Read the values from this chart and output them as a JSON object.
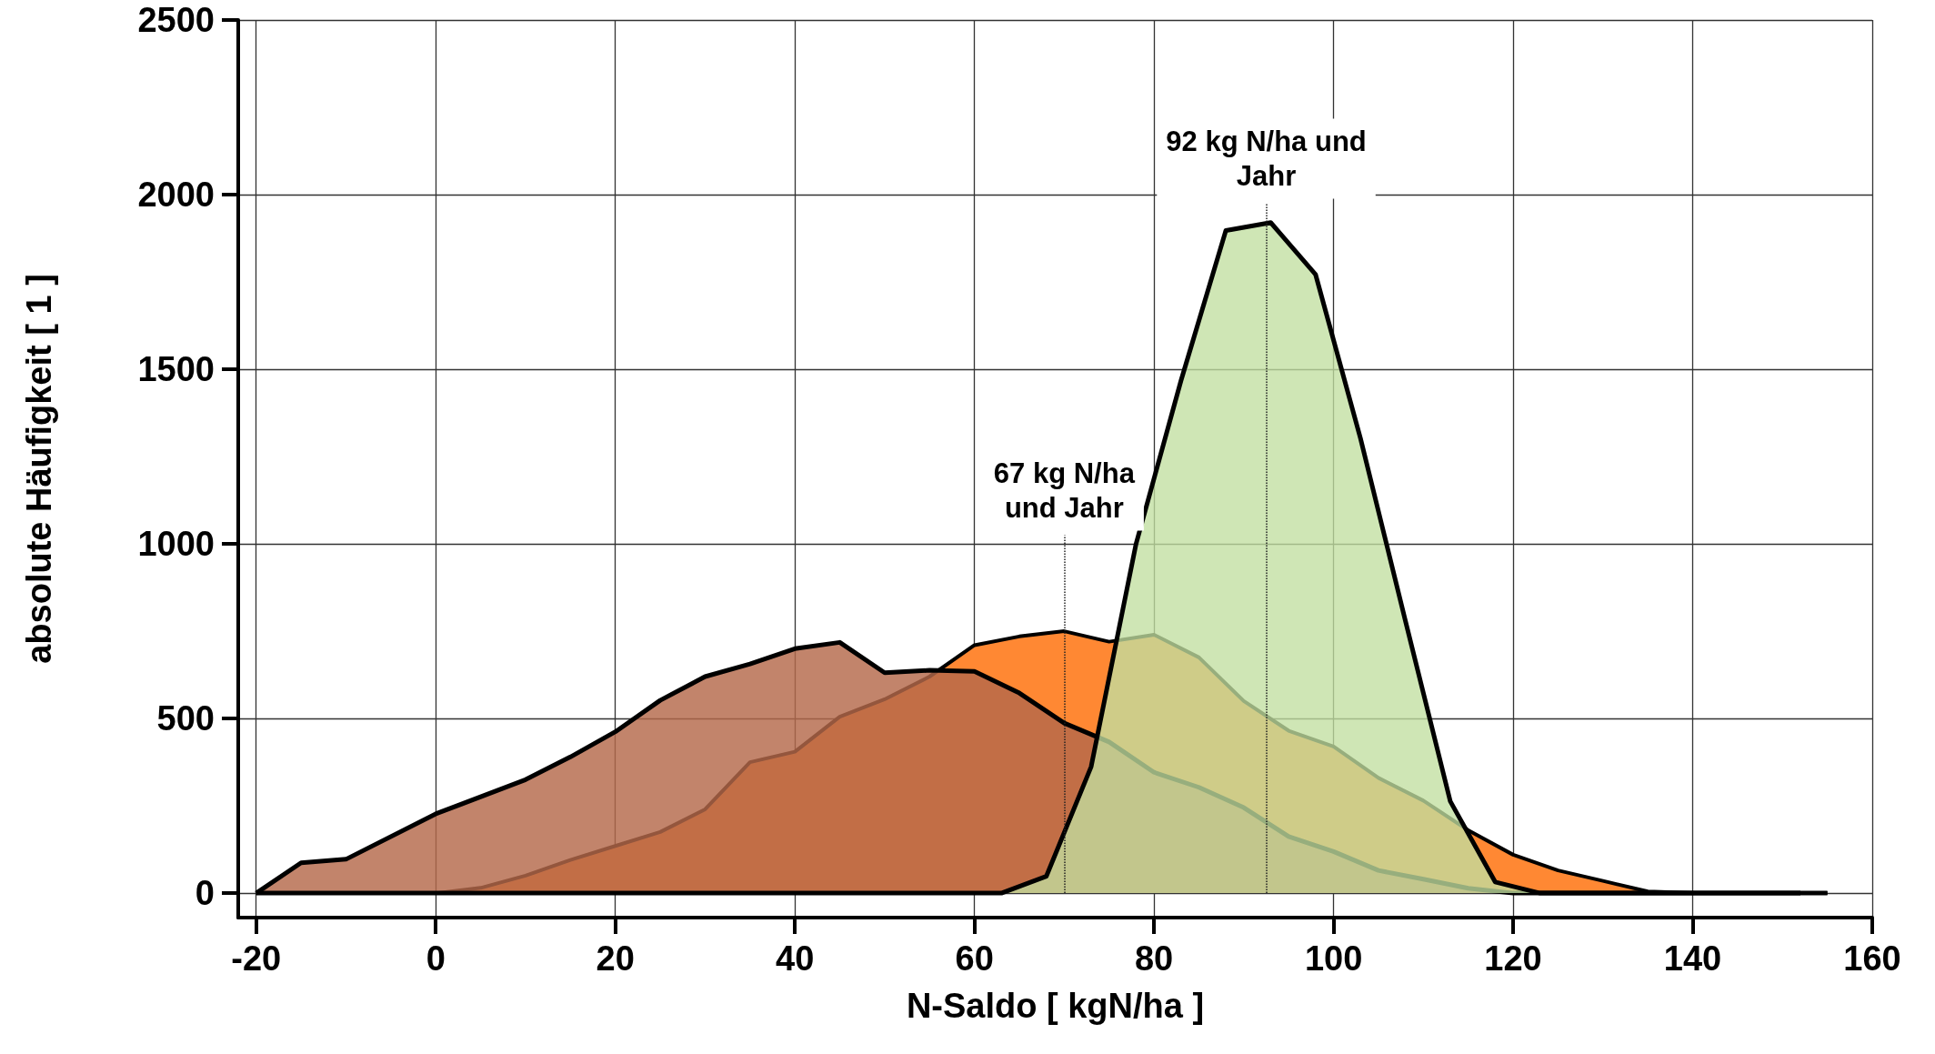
{
  "chart_data": {
    "type": "area",
    "xlabel": "N-Saldo [ kgN/ha ]",
    "ylabel": "absolute Häufigkeit [ 1 ]",
    "xlim": [
      -22,
      160
    ],
    "xticks": [
      -20,
      0,
      20,
      40,
      60,
      80,
      100,
      120,
      140,
      160
    ],
    "ylim": [
      -70,
      2500
    ],
    "yticks": [
      0,
      500,
      1000,
      1500,
      2000,
      2500
    ],
    "grid": true,
    "marker": "none",
    "line_style": "solid",
    "series": [
      {
        "color": "#ff8833",
        "x": [
          -20,
          0,
          5,
          10,
          15,
          20,
          25,
          30,
          35,
          40,
          45,
          50,
          55,
          60,
          65,
          70,
          75,
          80,
          85,
          90,
          95,
          100,
          105,
          110,
          115,
          120,
          125,
          130,
          135,
          140,
          155
        ],
        "values": [
          0,
          0,
          15,
          50,
          95,
          135,
          175,
          240,
          375,
          405,
          505,
          555,
          620,
          710,
          735,
          750,
          720,
          740,
          675,
          550,
          465,
          420,
          330,
          265,
          180,
          110,
          65,
          35,
          5,
          0,
          0
        ]
      },
      {
        "color": "#b5694a",
        "x": [
          -20,
          -15,
          -10,
          0,
          10,
          15,
          20,
          25,
          30,
          35,
          40,
          45,
          50,
          55,
          60,
          65,
          70,
          75,
          80,
          85,
          90,
          95,
          100,
          105,
          110,
          115,
          120,
          155
        ],
        "values": [
          0,
          87,
          97,
          227,
          325,
          390,
          462,
          552,
          620,
          656,
          700,
          718,
          631,
          638,
          635,
          573,
          487,
          433,
          346,
          303,
          245,
          162,
          119,
          65,
          40,
          14,
          0,
          0
        ]
      },
      {
        "color": "#c2dfa0",
        "x": [
          -20,
          63,
          68,
          73,
          78,
          83,
          88,
          93,
          98,
          103,
          108,
          113,
          118,
          123,
          152
        ],
        "values": [
          0,
          0,
          48,
          362,
          1000,
          1467,
          1897,
          1920,
          1771,
          1302,
          780,
          263,
          32,
          0,
          0
        ]
      }
    ],
    "ref_lines": [
      {
        "axis": "x",
        "value": 70,
        "label": "67 kg N/ha\nund Jahr",
        "line_style": "dotted"
      },
      {
        "axis": "x",
        "value": 92.5,
        "label": "92 kg N/ha und\nJahr",
        "line_style": "dotted"
      }
    ]
  }
}
